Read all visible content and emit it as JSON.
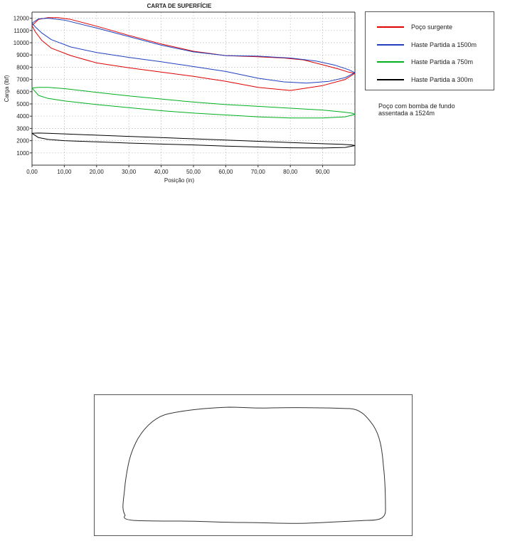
{
  "chart_data": {
    "type": "line",
    "title": "CARTA DE SUPERFÍCIE",
    "xlabel": "Posição (in)",
    "ylabel": "Carga (lbf)",
    "xlim": [
      0,
      100
    ],
    "ylim": [
      0,
      12500
    ],
    "x_ticks": [
      "0,00",
      "10,00",
      "20,00",
      "30,00",
      "40,00",
      "50,00",
      "60,00",
      "70,00",
      "80,00",
      "90,00"
    ],
    "y_ticks": [
      "1000",
      "2000",
      "3000",
      "4000",
      "5000",
      "6000",
      "7000",
      "8000",
      "9000",
      "10000",
      "11000",
      "12000"
    ],
    "grid": true,
    "legend_position": "right",
    "series": [
      {
        "name": "Poço surgente",
        "color": "#e00000",
        "x": [
          0,
          2,
          5,
          8,
          12,
          20,
          30,
          40,
          50,
          60,
          70,
          78,
          84,
          90,
          95,
          98,
          100,
          97,
          90,
          80,
          70,
          60,
          50,
          40,
          30,
          20,
          12,
          6,
          3,
          1,
          0
        ],
        "y": [
          11400,
          11900,
          12050,
          12050,
          11900,
          11350,
          10600,
          9900,
          9300,
          8950,
          8850,
          8750,
          8600,
          8200,
          7850,
          7600,
          7500,
          7000,
          6500,
          6100,
          6350,
          6850,
          7250,
          7600,
          7950,
          8350,
          8950,
          9550,
          10200,
          10900,
          11400
        ]
      },
      {
        "name": "Haste Partida a 1500m",
        "color": "#2040c0",
        "x": [
          0,
          2,
          5,
          10,
          20,
          30,
          40,
          50,
          60,
          70,
          80,
          88,
          94,
          98,
          100,
          97,
          92,
          85,
          78,
          70,
          60,
          50,
          40,
          30,
          20,
          12,
          6,
          3,
          1,
          0
        ],
        "y": [
          11600,
          11950,
          12000,
          11850,
          11200,
          10500,
          9800,
          9250,
          8950,
          8900,
          8750,
          8500,
          8150,
          7800,
          7550,
          7150,
          6850,
          6700,
          6800,
          7100,
          7650,
          8050,
          8450,
          8800,
          9200,
          9650,
          10250,
          10800,
          11300,
          11600
        ]
      },
      {
        "name": "Haste Partida a 750m",
        "color": "#00b020",
        "x": [
          0,
          2,
          5,
          10,
          20,
          30,
          40,
          50,
          60,
          70,
          80,
          90,
          96,
          99,
          100,
          97,
          90,
          80,
          70,
          60,
          50,
          40,
          30,
          20,
          10,
          5,
          2,
          0
        ],
        "y": [
          6300,
          6350,
          6350,
          6250,
          5950,
          5650,
          5400,
          5150,
          4950,
          4800,
          4650,
          4500,
          4350,
          4250,
          4150,
          3950,
          3850,
          3850,
          3950,
          4100,
          4250,
          4450,
          4700,
          4950,
          5250,
          5450,
          5700,
          6300
        ]
      },
      {
        "name": "Haste Partida a 300m",
        "color": "#000000",
        "x": [
          0,
          2,
          5,
          10,
          20,
          30,
          40,
          50,
          60,
          70,
          80,
          90,
          96,
          99,
          100,
          97,
          90,
          80,
          70,
          60,
          50,
          40,
          30,
          20,
          10,
          5,
          2,
          0
        ],
        "y": [
          2600,
          2620,
          2600,
          2550,
          2450,
          2350,
          2250,
          2150,
          2050,
          1950,
          1850,
          1750,
          1700,
          1650,
          1600,
          1450,
          1400,
          1420,
          1480,
          1560,
          1650,
          1720,
          1800,
          1900,
          2000,
          2100,
          2250,
          2600
        ]
      }
    ]
  },
  "note": {
    "line1": "Poço com bomba de fundo",
    "line2": "assentada a 1524m"
  }
}
